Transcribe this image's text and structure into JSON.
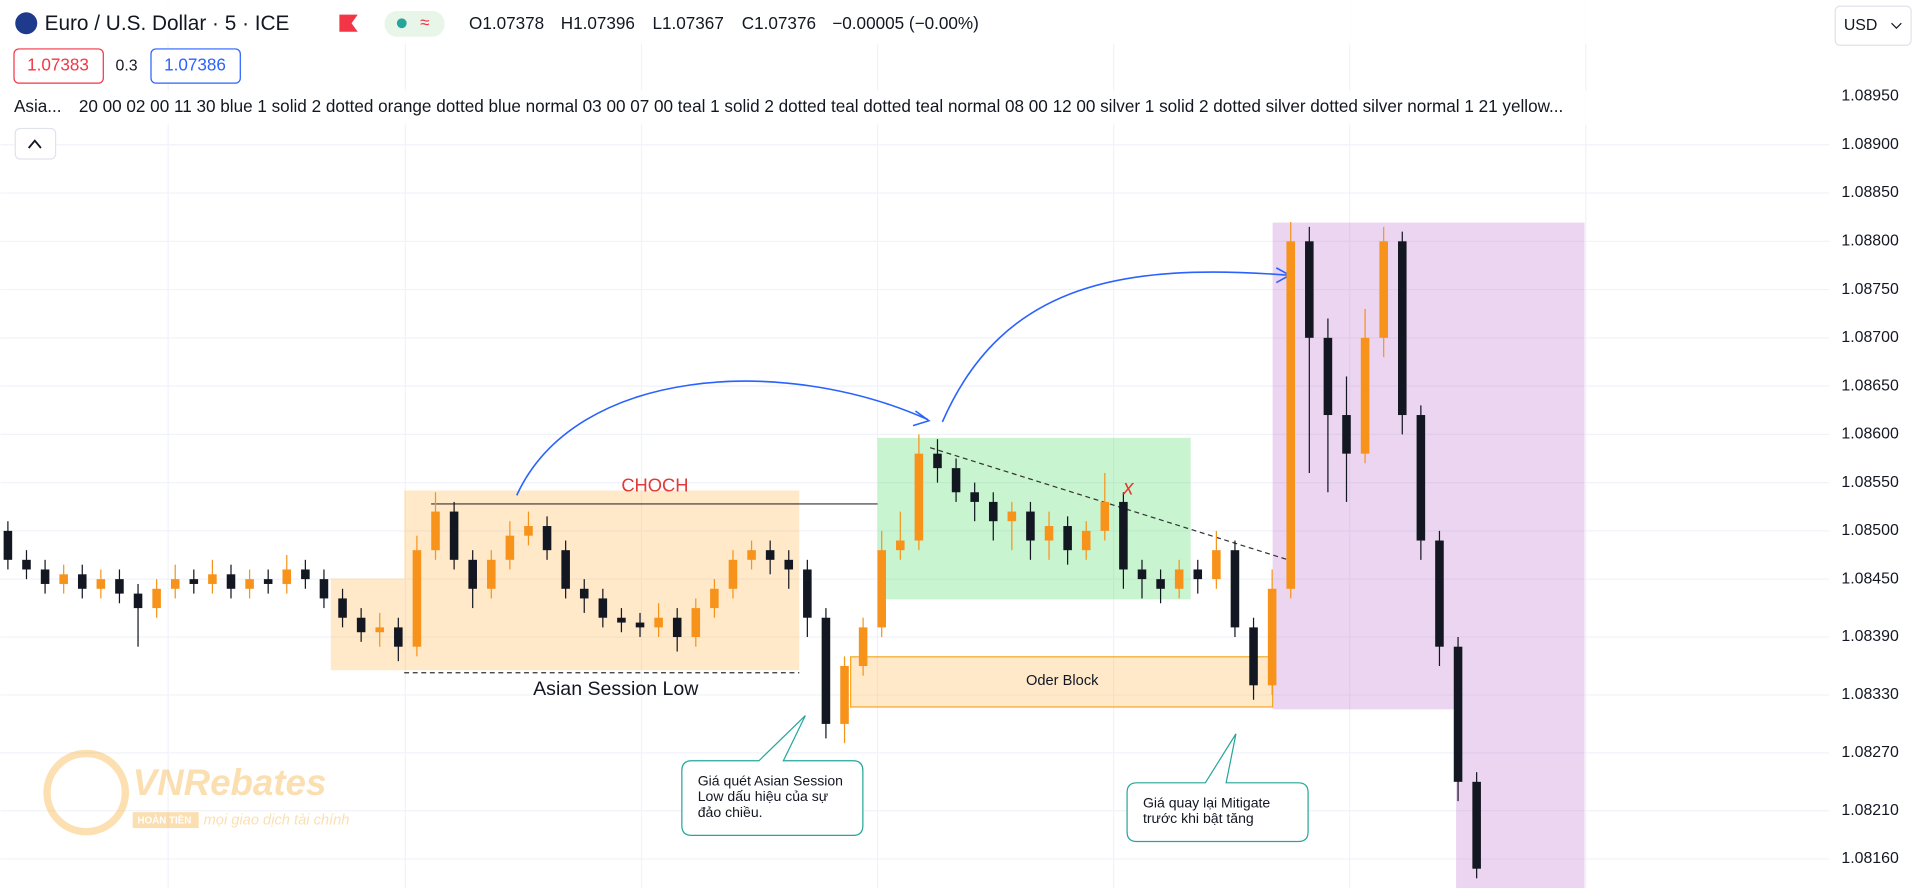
{
  "header": {
    "symbol": "Euro / U.S. Dollar · 5 · ICE",
    "open": "O1.07378",
    "high": "H1.07396",
    "low": "L1.07367",
    "close": "C1.07376",
    "change": "−0.00005 (−0.00%)",
    "sell": "1.07383",
    "spread": "0.3",
    "buy": "1.07386",
    "currency": "USD",
    "indicator_name": "Asia...",
    "indicator_settings": "20 00 02 00 11 30 blue 1 solid 2 dotted orange dotted blue normal 03 00 07 00 teal 1 solid 2 dotted teal dotted teal normal 08 00 12 00 silver 1 solid 2 dotted silver dotted silver normal 1 21 yellow..."
  },
  "chart_data": {
    "type": "candlestick",
    "up_color": "#f7931a",
    "down_color": "#131722",
    "open": [
      1.085,
      1.0847,
      1.0846,
      1.08445,
      1.08455,
      1.0844,
      1.0845,
      1.08435,
      1.0842,
      1.0844,
      1.0845,
      1.08445,
      1.08455,
      1.0844,
      1.0845,
      1.08445,
      1.0846,
      1.0845,
      1.0843,
      1.0841,
      1.08395,
      1.084,
      1.0838,
      1.0848,
      1.0852,
      1.0847,
      1.0844,
      1.0847,
      1.08495,
      1.08505,
      1.0848,
      1.0844,
      1.0843,
      1.0841,
      1.08405,
      1.084,
      1.0841,
      1.0839,
      1.0842,
      1.0844,
      1.0847,
      1.0848,
      1.0847,
      1.0846,
      1.0841,
      1.083,
      1.0836,
      1.084,
      1.0848,
      1.0849,
      1.0858,
      1.08565,
      1.0854,
      1.0853,
      1.0851,
      1.0852,
      1.0849,
      1.08505,
      1.0848,
      1.085,
      1.0853,
      1.0846,
      1.0845,
      1.0844,
      1.0846,
      1.0845,
      1.0848,
      1.084,
      1.0834,
      1.0844,
      1.088,
      1.087,
      1.0862,
      1.0858,
      1.087,
      1.088,
      1.0862,
      1.0849,
      1.0838,
      1.0824
    ],
    "high": [
      1.0851,
      1.0848,
      1.0847,
      1.08465,
      1.08465,
      1.0846,
      1.0846,
      1.08445,
      1.0845,
      1.08465,
      1.0846,
      1.0847,
      1.08465,
      1.0846,
      1.0846,
      1.08475,
      1.0847,
      1.0846,
      1.0844,
      1.0842,
      1.08415,
      1.0841,
      1.08495,
      1.0854,
      1.0853,
      1.0848,
      1.0848,
      1.0851,
      1.0852,
      1.08515,
      1.0849,
      1.0845,
      1.0844,
      1.0842,
      1.08415,
      1.08425,
      1.0842,
      1.0843,
      1.0845,
      1.0848,
      1.0849,
      1.0849,
      1.0848,
      1.0847,
      1.0842,
      1.0837,
      1.0841,
      1.085,
      1.0852,
      1.086,
      1.08595,
      1.08575,
      1.0855,
      1.0854,
      1.0853,
      1.0853,
      1.0852,
      1.08515,
      1.0851,
      1.0856,
      1.0854,
      1.0847,
      1.0846,
      1.0847,
      1.0847,
      1.085,
      1.0849,
      1.0841,
      1.0846,
      1.0882,
      1.08815,
      1.0872,
      1.0866,
      1.0873,
      1.08815,
      1.0881,
      1.0863,
      1.085,
      1.0839,
      1.0825
    ],
    "low": [
      1.0846,
      1.0845,
      1.08435,
      1.08435,
      1.0843,
      1.0843,
      1.08425,
      1.0838,
      1.0841,
      1.0843,
      1.08435,
      1.08435,
      1.0843,
      1.0843,
      1.08435,
      1.08435,
      1.0844,
      1.0842,
      1.084,
      1.08385,
      1.0838,
      1.08365,
      1.0837,
      1.0847,
      1.0846,
      1.0842,
      1.0843,
      1.0846,
      1.08485,
      1.0847,
      1.0843,
      1.08415,
      1.084,
      1.08395,
      1.0839,
      1.0839,
      1.08375,
      1.0838,
      1.0841,
      1.0843,
      1.0846,
      1.08455,
      1.0844,
      1.0839,
      1.08285,
      1.0828,
      1.0835,
      1.0839,
      1.0847,
      1.0848,
      1.0855,
      1.0853,
      1.0851,
      1.0849,
      1.0848,
      1.0847,
      1.0847,
      1.08465,
      1.0847,
      1.0849,
      1.0844,
      1.0843,
      1.08425,
      1.0843,
      1.08435,
      1.0844,
      1.0839,
      1.08325,
      1.0833,
      1.0843,
      1.0856,
      1.0854,
      1.0853,
      1.0857,
      1.0868,
      1.086,
      1.0847,
      1.0836,
      1.0822,
      1.0814
    ],
    "close": [
      1.0847,
      1.0846,
      1.08445,
      1.08455,
      1.0844,
      1.0845,
      1.08435,
      1.0842,
      1.0844,
      1.0845,
      1.08445,
      1.08455,
      1.0844,
      1.0845,
      1.08445,
      1.0846,
      1.0845,
      1.0843,
      1.0841,
      1.08395,
      1.084,
      1.0838,
      1.0848,
      1.0852,
      1.0847,
      1.0844,
      1.0847,
      1.08495,
      1.08505,
      1.0848,
      1.0844,
      1.0843,
      1.0841,
      1.08405,
      1.084,
      1.0841,
      1.0839,
      1.0842,
      1.0844,
      1.0847,
      1.0848,
      1.0847,
      1.0846,
      1.0841,
      1.083,
      1.0836,
      1.084,
      1.0848,
      1.0849,
      1.0858,
      1.08565,
      1.0854,
      1.0853,
      1.0851,
      1.0852,
      1.0849,
      1.08505,
      1.0848,
      1.085,
      1.0853,
      1.0846,
      1.0845,
      1.0844,
      1.0846,
      1.0845,
      1.0848,
      1.084,
      1.0834,
      1.0844,
      1.088,
      1.087,
      1.0862,
      1.0858,
      1.087,
      1.088,
      1.0862,
      1.0849,
      1.0838,
      1.0824,
      1.0815
    ],
    "ylim": [
      1.0813,
      1.0905
    ],
    "yticks": [
      {
        "value": 1.0816,
        "label": "1.08160"
      },
      {
        "value": 1.0821,
        "label": "1.08210"
      },
      {
        "value": 1.0827,
        "label": "1.08270"
      },
      {
        "value": 1.0833,
        "label": "1.08330"
      },
      {
        "value": 1.0839,
        "label": "1.08390"
      },
      {
        "value": 1.0845,
        "label": "1.08450"
      },
      {
        "value": 1.085,
        "label": "1.08500"
      },
      {
        "value": 1.0855,
        "label": "1.08550"
      },
      {
        "value": 1.086,
        "label": "1.08600"
      },
      {
        "value": 1.0865,
        "label": "1.08650"
      },
      {
        "value": 1.087,
        "label": "1.08700"
      },
      {
        "value": 1.0875,
        "label": "1.08750"
      },
      {
        "value": 1.088,
        "label": "1.08800"
      },
      {
        "value": 1.0885,
        "label": "1.08850"
      },
      {
        "value": 1.089,
        "label": "1.08900"
      },
      {
        "value": 1.0895,
        "label": "1.08950"
      }
    ],
    "grid": true
  },
  "annotations": {
    "choch": "CHOCH",
    "asian_low": "Asian Session Low",
    "order_block": "Oder Block",
    "invalid": "x",
    "callout_1": [
      "Giá quét Asian Session",
      "Low dấu hiệu của sự",
      "đảo chiều."
    ],
    "callout_2": [
      "Giá quay lại Mitigate",
      "trước khi bật tăng"
    ]
  },
  "watermark": {
    "brand": "VNRebates",
    "tag": "HOÀN TIỀN",
    "slogan": "mọi giao dịch tài chính"
  }
}
